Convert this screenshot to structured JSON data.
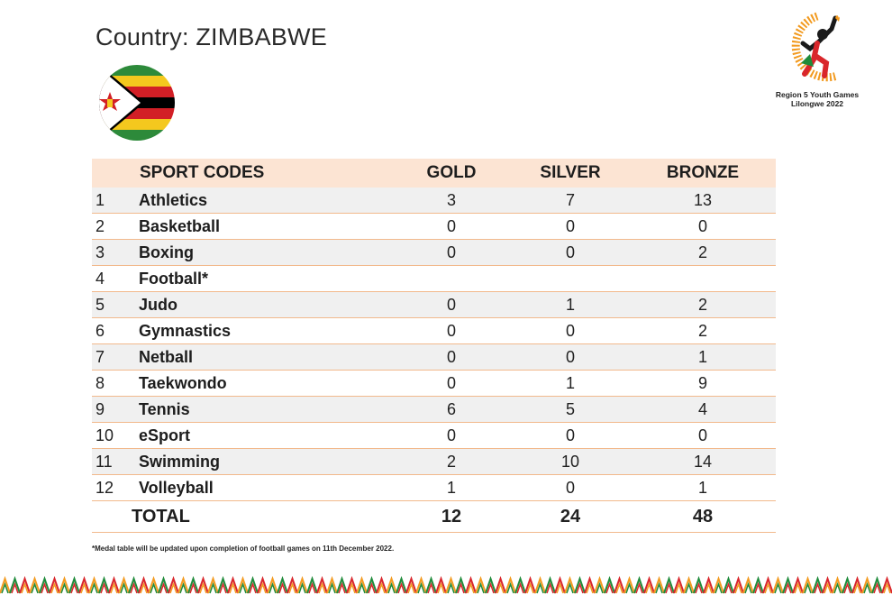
{
  "header": {
    "title": "Country: ZIMBABWE"
  },
  "logo": {
    "line1": "Region 5 Youth Games",
    "line2": "Lilongwe 2022"
  },
  "table": {
    "headers": {
      "index": "",
      "sport": "SPORT CODES",
      "gold": "GOLD",
      "silver": "SILVER",
      "bronze": "BRONZE"
    },
    "rows": [
      {
        "n": "1",
        "sport": "Athletics",
        "gold": "3",
        "silver": "7",
        "bronze": "13"
      },
      {
        "n": "2",
        "sport": "Basketball",
        "gold": "0",
        "silver": "0",
        "bronze": "0"
      },
      {
        "n": "3",
        "sport": "Boxing",
        "gold": "0",
        "silver": "0",
        "bronze": "2"
      },
      {
        "n": "4",
        "sport": "Football*",
        "gold": "",
        "silver": "",
        "bronze": ""
      },
      {
        "n": "5",
        "sport": "Judo",
        "gold": "0",
        "silver": "1",
        "bronze": "2"
      },
      {
        "n": "6",
        "sport": "Gymnastics",
        "gold": "0",
        "silver": "0",
        "bronze": "2"
      },
      {
        "n": "7",
        "sport": "Netball",
        "gold": "0",
        "silver": "0",
        "bronze": "1"
      },
      {
        "n": "8",
        "sport": "Taekwondo",
        "gold": "0",
        "silver": "1",
        "bronze": "9"
      },
      {
        "n": "9",
        "sport": "Tennis",
        "gold": "6",
        "silver": "5",
        "bronze": "4"
      },
      {
        "n": "10",
        "sport": "eSport",
        "gold": "0",
        "silver": "0",
        "bronze": "0"
      },
      {
        "n": "11",
        "sport": "Swimming",
        "gold": "2",
        "silver": "10",
        "bronze": "14"
      },
      {
        "n": "12",
        "sport": "Volleyball",
        "gold": "1",
        "silver": "0",
        "bronze": "1"
      }
    ],
    "total": {
      "label": "TOTAL",
      "gold": "12",
      "silver": "24",
      "bronze": "48"
    }
  },
  "footnote": "*Medal table will be updated upon completion of football games on 11th December 2022.",
  "colors": {
    "header_bg": "#fce4d3",
    "row_alt_bg": "#f0f0f0",
    "row_border": "#f2b98c",
    "flag_green": "#2d8a3a",
    "flag_yellow": "#f4c81e",
    "flag_red": "#d21f26",
    "flag_black": "#000000",
    "logo_orange": "#f29a1f",
    "logo_red": "#d9262b",
    "logo_green": "#1f8b3a"
  },
  "icons": {
    "flag": "zimbabwe-flag-icon",
    "logo": "region5-youth-games-logo",
    "border": "zigzag-pattern-border"
  }
}
